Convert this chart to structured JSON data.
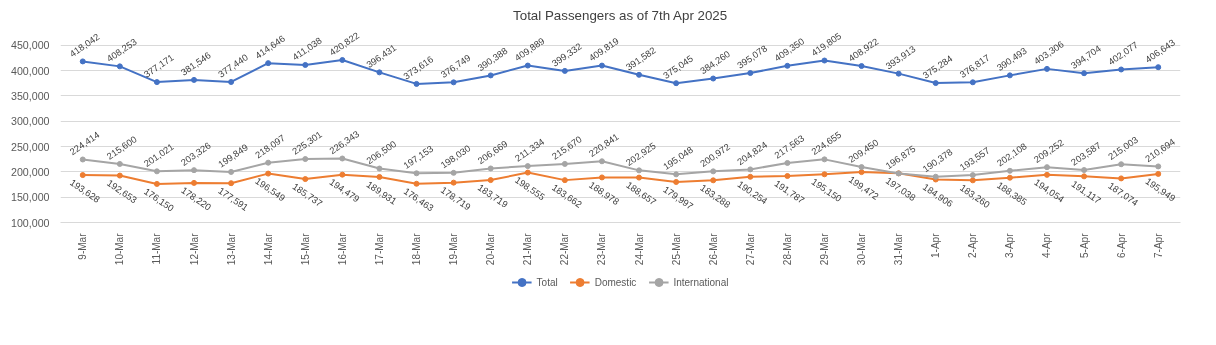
{
  "chart_data": {
    "type": "line",
    "title": "Total Passengers as of 7th Apr 2025",
    "categories": [
      "9-Mar",
      "10-Mar",
      "11-Mar",
      "12-Mar",
      "13-Mar",
      "14-Mar",
      "15-Mar",
      "16-Mar",
      "17-Mar",
      "18-Mar",
      "19-Mar",
      "20-Mar",
      "21-Mar",
      "22-Mar",
      "23-Mar",
      "24-Mar",
      "25-Mar",
      "26-Mar",
      "27-Mar",
      "28-Mar",
      "29-Mar",
      "30-Mar",
      "31-Mar",
      "1-Apr",
      "2-Apr",
      "3-Apr",
      "4-Apr",
      "5-Apr",
      "6-Apr",
      "7-Apr"
    ],
    "series": [
      {
        "name": "Total",
        "color": "#4472c4",
        "values": [
          418042,
          408253,
          377171,
          381546,
          377440,
          414646,
          411038,
          420822,
          396431,
          373616,
          376749,
          390388,
          409889,
          399332,
          409819,
          391582,
          375045,
          384260,
          395078,
          409350,
          419805,
          408922,
          393913,
          375284,
          376817,
          390493,
          403306,
          394704,
          402077,
          406643
        ],
        "value_labels": [
          "418,042",
          "408,253",
          "377,171",
          "381,546",
          "377,440",
          "414,646",
          "411,038",
          "420,822",
          "396,431",
          "373,616",
          "376,749",
          "390,388",
          "409,889",
          "399,332",
          "409,819",
          "391,582",
          "375,045",
          "384,260",
          "395,078",
          "409,350",
          "419,805",
          "408,922",
          "393,913",
          "375,284",
          "376,817",
          "390,493",
          "403,306",
          "394,704",
          "402,077",
          "406,643"
        ]
      },
      {
        "name": "Domestic",
        "color": "#ed7d31",
        "values": [
          193628,
          192653,
          176150,
          178220,
          177591,
          196549,
          185737,
          194479,
          189931,
          176463,
          178719,
          183719,
          198555,
          183662,
          188978,
          188657,
          179997,
          183288,
          190254,
          191787,
          195150,
          199472,
          197038,
          184906,
          183260,
          188385,
          194054,
          191117,
          187074,
          195949
        ],
        "value_labels": [
          "193,628",
          "192,653",
          "176,150",
          "178,220",
          "177,591",
          "196,549",
          "185,737",
          "194,479",
          "189,931",
          "176,463",
          "178,719",
          "183,719",
          "198,555",
          "183,662",
          "188,978",
          "188,657",
          "179,997",
          "183,288",
          "190,254",
          "191,787",
          "195,150",
          "199,472",
          "197,038",
          "184,906",
          "183,260",
          "188,385",
          "194,054",
          "191,117",
          "187,074",
          "195,949"
        ]
      },
      {
        "name": "International",
        "color": "#a5a5a5",
        "values": [
          224414,
          215600,
          201021,
          203326,
          199849,
          218097,
          225301,
          226343,
          206500,
          197153,
          198030,
          206669,
          211334,
          215670,
          220841,
          202925,
          195048,
          200972,
          204824,
          217563,
          224655,
          209450,
          196875,
          190378,
          193557,
          202108,
          209252,
          203587,
          215003,
          210694
        ],
        "value_labels": [
          "224,414",
          "215,600",
          "201,021",
          "203,326",
          "199,849",
          "218,097",
          "225,301",
          "226,343",
          "206,500",
          "197,153",
          "198,030",
          "206,669",
          "211,334",
          "215,670",
          "220,841",
          "202,925",
          "195,048",
          "200,972",
          "204,824",
          "217,563",
          "224,655",
          "209,450",
          "196,875",
          "190,378",
          "193,557",
          "202,108",
          "209,252",
          "203,587",
          "215,003",
          "210,694"
        ]
      }
    ],
    "ylim": [
      100000,
      450000
    ],
    "yticks": [
      {
        "value": 100000,
        "label": "100,000"
      },
      {
        "value": 150000,
        "label": "150,000"
      },
      {
        "value": 200000,
        "label": "200,000"
      },
      {
        "value": 250000,
        "label": "250,000"
      },
      {
        "value": 300000,
        "label": "300,000"
      },
      {
        "value": 350000,
        "label": "350,000"
      },
      {
        "value": 400000,
        "label": "400,000"
      },
      {
        "value": 450000,
        "label": "450,000"
      }
    ],
    "grid": "y",
    "legend": "bottom",
    "marker": "circle",
    "line_style": "solid",
    "data_labels": true
  }
}
